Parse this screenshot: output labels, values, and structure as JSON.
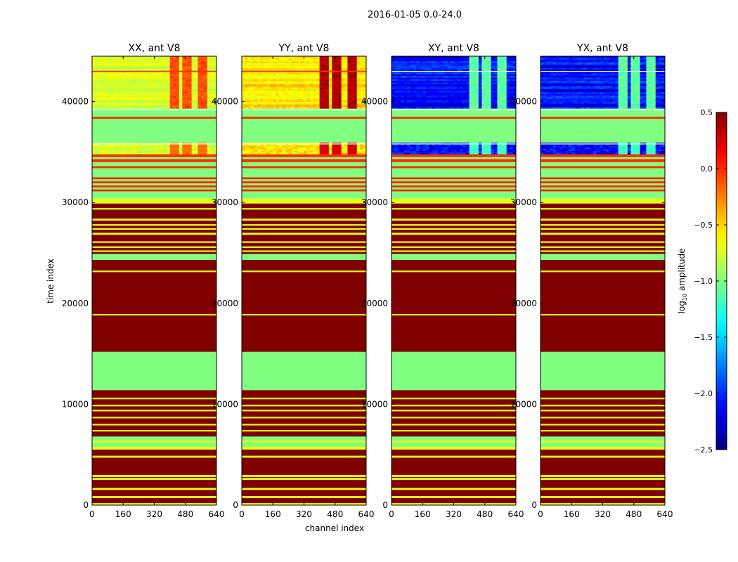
{
  "figure_title": "2016-01-05 0.0-24.0",
  "chart_data": {
    "type": "heatmap",
    "title": "2016-01-05 0.0-24.0",
    "xlabel": "channel index",
    "ylabel": "time index",
    "xlim": [
      0,
      640
    ],
    "ylim": [
      0,
      44500
    ],
    "x_ticks": [
      0,
      160,
      320,
      480,
      640
    ],
    "y_ticks": [
      0,
      10000,
      20000,
      30000,
      40000
    ],
    "y_tick_labels": [
      "0",
      "10000",
      "20000",
      "30000",
      "40000"
    ],
    "colorbar": {
      "label": "log10 amplitude",
      "label_main": "log",
      "label_sub": "10",
      "label_tail": " amplitude",
      "range": [
        -2.5,
        0.5
      ],
      "ticks": [
        0.5,
        0.0,
        -0.5,
        -1.0,
        -1.5,
        -2.0,
        -2.5
      ],
      "tick_labels": [
        "0.5",
        "0.0",
        "−0.5",
        "−1.0",
        "−1.5",
        "−2.0",
        "−2.5"
      ],
      "colormap": "jet"
    },
    "panels": [
      {
        "title": "XX, ant V8",
        "pol": "XX"
      },
      {
        "title": "YY, ant V8",
        "pol": "YY"
      },
      {
        "title": "XY, ant V8",
        "pol": "XY"
      },
      {
        "title": "YX, ant V8",
        "pol": "YX"
      }
    ],
    "time_blocks": [
      {
        "t0": 0,
        "t1": 200,
        "value": -0.7
      },
      {
        "t0": 200,
        "t1": 700,
        "value": 0.5
      },
      {
        "t0": 700,
        "t1": 900,
        "value": -0.7
      },
      {
        "t0": 900,
        "t1": 1500,
        "value": 0.5
      },
      {
        "t0": 1500,
        "t1": 1700,
        "value": -0.7
      },
      {
        "t0": 1700,
        "t1": 2500,
        "value": 0.5
      },
      {
        "t0": 2500,
        "t1": 2700,
        "value": -0.7
      },
      {
        "t0": 2700,
        "t1": 2800,
        "value": 0.5
      },
      {
        "t0": 2800,
        "t1": 3000,
        "value": -0.7
      },
      {
        "t0": 3000,
        "t1": 4700,
        "value": 0.5
      },
      {
        "t0": 4700,
        "t1": 4900,
        "value": -0.7
      },
      {
        "t0": 4900,
        "t1": 5500,
        "value": 0.5
      },
      {
        "t0": 5500,
        "t1": 5800,
        "value": -0.7
      },
      {
        "t0": 5800,
        "t1": 6200,
        "value": -1.0
      },
      {
        "t0": 6200,
        "t1": 6400,
        "value": -0.7
      },
      {
        "t0": 6400,
        "t1": 6800,
        "value": -1.0
      },
      {
        "t0": 6800,
        "t1": 7300,
        "value": 0.5
      },
      {
        "t0": 7300,
        "t1": 7450,
        "value": -0.7
      },
      {
        "t0": 7450,
        "t1": 7900,
        "value": 0.5
      },
      {
        "t0": 7900,
        "t1": 8050,
        "value": -0.7
      },
      {
        "t0": 8050,
        "t1": 8600,
        "value": 0.5
      },
      {
        "t0": 8600,
        "t1": 8750,
        "value": -0.7
      },
      {
        "t0": 8750,
        "t1": 9300,
        "value": 0.5
      },
      {
        "t0": 9300,
        "t1": 9450,
        "value": -0.7
      },
      {
        "t0": 9450,
        "t1": 9800,
        "value": 0.5
      },
      {
        "t0": 9800,
        "t1": 9950,
        "value": -0.7
      },
      {
        "t0": 9950,
        "t1": 10500,
        "value": 0.5
      },
      {
        "t0": 10500,
        "t1": 10650,
        "value": -0.7
      },
      {
        "t0": 10650,
        "t1": 11400,
        "value": 0.5
      },
      {
        "t0": 11400,
        "t1": 15200,
        "value": -1.0
      },
      {
        "t0": 15200,
        "t1": 18800,
        "value": 0.5
      },
      {
        "t0": 18800,
        "t1": 18950,
        "value": -0.7
      },
      {
        "t0": 18950,
        "t1": 23100,
        "value": 0.5
      },
      {
        "t0": 23100,
        "t1": 23250,
        "value": -0.7
      },
      {
        "t0": 23250,
        "t1": 24300,
        "value": 0.5
      },
      {
        "t0": 24300,
        "t1": 24900,
        "value": -1.0
      },
      {
        "t0": 24900,
        "t1": 25100,
        "value": 0.5
      },
      {
        "t0": 25100,
        "t1": 25250,
        "value": -0.7
      },
      {
        "t0": 25250,
        "t1": 25500,
        "value": 0.5
      },
      {
        "t0": 25500,
        "t1": 25650,
        "value": -0.7
      },
      {
        "t0": 25650,
        "t1": 26000,
        "value": 0.5
      },
      {
        "t0": 26000,
        "t1": 26150,
        "value": -0.7
      },
      {
        "t0": 26150,
        "t1": 26800,
        "value": 0.5
      },
      {
        "t0": 26800,
        "t1": 27000,
        "value": -0.7
      },
      {
        "t0": 27000,
        "t1": 27300,
        "value": 0.5
      },
      {
        "t0": 27300,
        "t1": 27450,
        "value": -0.7
      },
      {
        "t0": 27450,
        "t1": 27700,
        "value": 0.5
      },
      {
        "t0": 27700,
        "t1": 27850,
        "value": -0.7
      },
      {
        "t0": 27850,
        "t1": 28200,
        "value": 0.5
      },
      {
        "t0": 28200,
        "t1": 28400,
        "value": -0.7
      },
      {
        "t0": 28400,
        "t1": 29300,
        "value": 0.5
      },
      {
        "t0": 29300,
        "t1": 29450,
        "value": -0.7
      },
      {
        "t0": 29450,
        "t1": 29900,
        "value": 0.5
      },
      {
        "t0": 29900,
        "t1": 30400,
        "value": -0.7
      },
      {
        "t0": 30400,
        "t1": 31100,
        "value": -1.0
      },
      {
        "t0": 31100,
        "t1": 31300,
        "value": 0.0
      },
      {
        "t0": 31300,
        "t1": 31500,
        "value": -1.0
      },
      {
        "t0": 31500,
        "t1": 31700,
        "value": 0.0
      },
      {
        "t0": 31700,
        "t1": 31900,
        "value": -1.0
      },
      {
        "t0": 31900,
        "t1": 32100,
        "value": 0.0
      },
      {
        "t0": 32100,
        "t1": 32300,
        "value": -1.0
      },
      {
        "t0": 32300,
        "t1": 32500,
        "value": 0.0
      },
      {
        "t0": 32500,
        "t1": 33400,
        "value": -1.0
      },
      {
        "t0": 33400,
        "t1": 33600,
        "value": 0.0
      },
      {
        "t0": 33600,
        "t1": 34000,
        "value": -1.0
      },
      {
        "t0": 34000,
        "t1": 34300,
        "value": 0.0
      },
      {
        "t0": 34300,
        "t1": 34500,
        "value": -1.0
      },
      {
        "t0": 34500,
        "t1": 34800,
        "value": 0.0
      },
      {
        "t0": 34800,
        "t1": 38300,
        "value": -1.0
      },
      {
        "t0": 38300,
        "t1": 38500,
        "value": 0.0
      },
      {
        "t0": 38500,
        "t1": 39200,
        "value": -1.0
      }
    ],
    "data_region": {
      "t0": 34800,
      "t1": 44500
    },
    "blank_rows": [
      35800,
      39200,
      43000
    ],
    "panel_data_values": {
      "XX": {
        "base": -0.75,
        "variation": 0.25,
        "hot_value": -0.1,
        "spike_rows": [
          43000
        ],
        "spike_value": 0.0
      },
      "YY": {
        "base": -0.55,
        "variation": 0.3,
        "hot_value": 0.35,
        "spike_rows": [
          43000
        ],
        "spike_value": 0.0
      },
      "XY": {
        "base": -2.1,
        "variation": 0.4,
        "hot_value": -1.1,
        "spike_rows": [],
        "spike_value": 0.0
      },
      "YX": {
        "base": -2.1,
        "variation": 0.4,
        "hot_value": -1.1,
        "spike_rows": [],
        "spike_value": 0.0
      }
    },
    "hot_channel_bands": [
      [
        400,
        440
      ],
      [
        460,
        500
      ],
      [
        540,
        580
      ]
    ]
  }
}
